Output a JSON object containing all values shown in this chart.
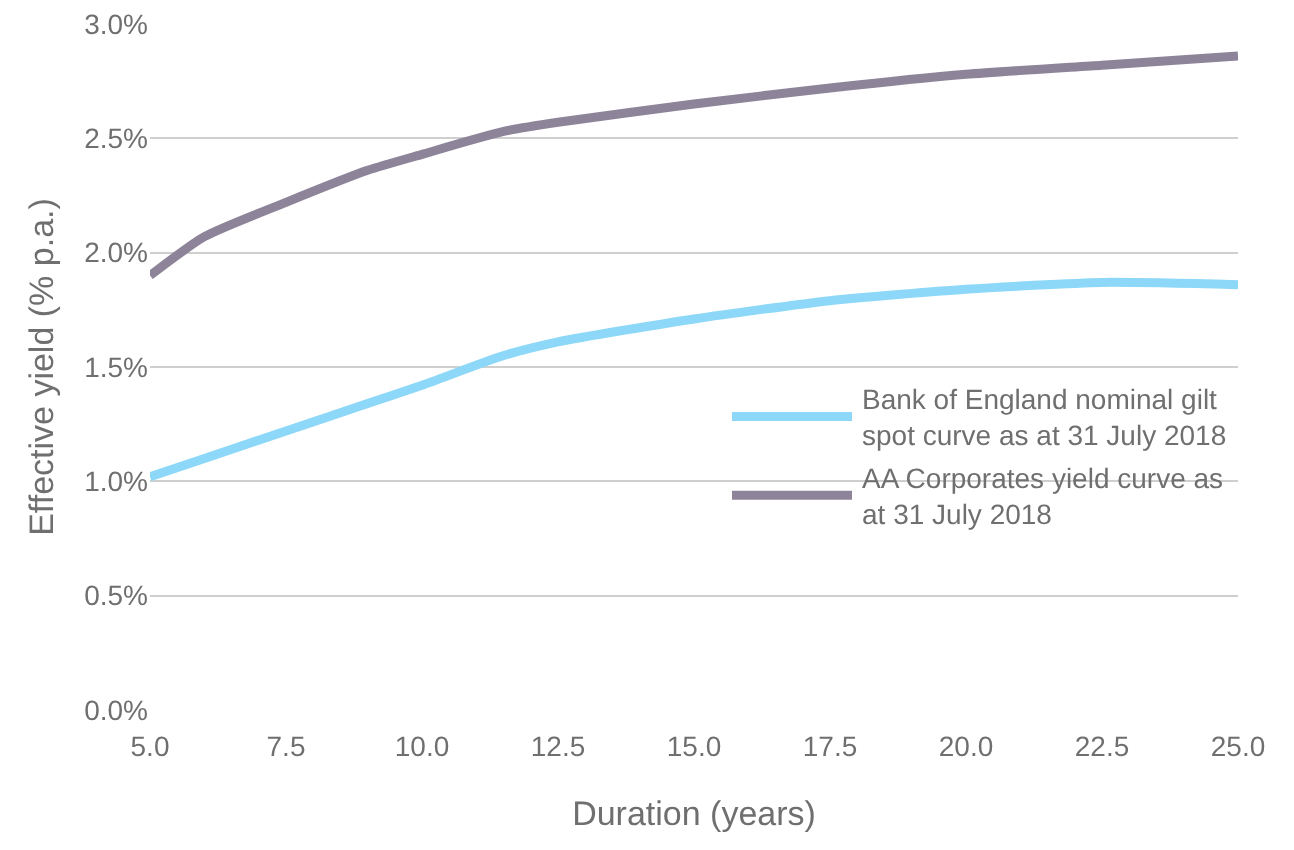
{
  "chart_data": {
    "type": "line",
    "xlabel": "Duration (years)",
    "ylabel": "Effective yield (% p.a.)",
    "x": [
      5,
      6,
      7.5,
      9,
      10,
      11.5,
      12.5,
      15,
      17.5,
      20,
      22.5,
      25
    ],
    "series": [
      {
        "name": "Bank of England nominal gilt spot curve as at 31 July 2018",
        "color": "#8dd8f8",
        "values": [
          1.02,
          1.1,
          1.22,
          1.34,
          1.42,
          1.55,
          1.61,
          1.71,
          1.79,
          1.84,
          1.87,
          1.86
        ]
      },
      {
        "name": "AA Corporates yield curve as at 31 July 2018",
        "color": "#8e8499",
        "values": [
          1.9,
          2.07,
          2.22,
          2.36,
          2.43,
          2.53,
          2.57,
          2.65,
          2.72,
          2.78,
          2.82,
          2.86
        ]
      }
    ],
    "xlim": [
      5,
      25
    ],
    "xticks": [
      {
        "value": 5,
        "label": "5.0"
      },
      {
        "value": 7.5,
        "label": "7.5"
      },
      {
        "value": 10,
        "label": "10.0"
      },
      {
        "value": 12.5,
        "label": "12.5"
      },
      {
        "value": 15,
        "label": "15.0"
      },
      {
        "value": 17.5,
        "label": "17.5"
      },
      {
        "value": 20,
        "label": "20.0"
      },
      {
        "value": 22.5,
        "label": "22.5"
      },
      {
        "value": 25,
        "label": "25.0"
      }
    ],
    "ylim": [
      0,
      3
    ],
    "yticks": [
      {
        "value": 0,
        "label": "0.0%"
      },
      {
        "value": 0.5,
        "label": "0.5%"
      },
      {
        "value": 1,
        "label": "1.0%"
      },
      {
        "value": 1.5,
        "label": "1.5%"
      },
      {
        "value": 2,
        "label": "2.0%"
      },
      {
        "value": 2.5,
        "label": "2.5%"
      },
      {
        "value": 3,
        "label": "3.0%"
      }
    ],
    "grid": "y",
    "legend": "right",
    "marker": "none",
    "line_style": "solid"
  }
}
